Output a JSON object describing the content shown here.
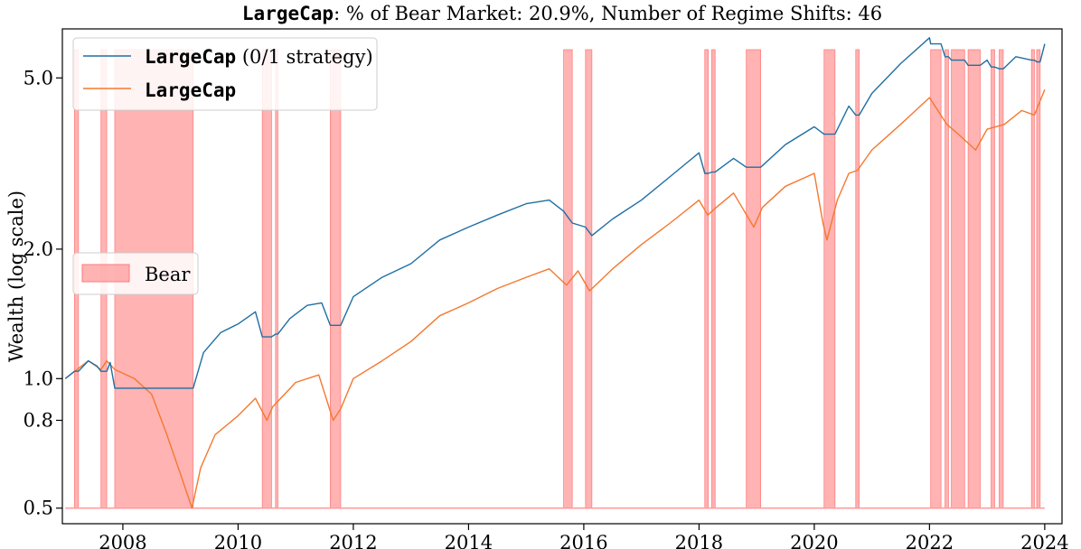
{
  "chart_data": {
    "type": "line",
    "title": {
      "code": "LargeCap",
      "rest": ": % of Bear Market: 20.9%, Number of Regime Shifts: 46"
    },
    "ylabel": "Wealth (log scale)",
    "xlabel": "",
    "y_scale": "log",
    "xlim": [
      2006.95,
      2024.3
    ],
    "ylim": [
      0.46,
      6.5
    ],
    "x_ticks": [
      {
        "value": 2008,
        "label": "2008"
      },
      {
        "value": 2010,
        "label": "2010"
      },
      {
        "value": 2012,
        "label": "2012"
      },
      {
        "value": 2014,
        "label": "2014"
      },
      {
        "value": 2016,
        "label": "2016"
      },
      {
        "value": 2018,
        "label": "2018"
      },
      {
        "value": 2020,
        "label": "2020"
      },
      {
        "value": 2022,
        "label": "2022"
      },
      {
        "value": 2024,
        "label": "2024"
      }
    ],
    "y_ticks": [
      {
        "value": 0.5,
        "label": "0.5"
      },
      {
        "value": 0.8,
        "label": "0.8"
      },
      {
        "value": 1.0,
        "label": "1.0"
      },
      {
        "value": 2.0,
        "label": "2.0"
      },
      {
        "value": 5.0,
        "label": "5.0"
      }
    ],
    "grid": false,
    "legend_upper": {
      "placement": "top-left",
      "entries": [
        {
          "code": "LargeCap",
          "suffix": " (0/1 strategy)",
          "color": "#1f6fa3"
        },
        {
          "code": "LargeCap",
          "suffix": "",
          "color": "#f4782f"
        }
      ]
    },
    "legend_lower": {
      "placement": "center-left",
      "entries": [
        {
          "label": "Bear",
          "color": "#ff9a9a"
        }
      ]
    },
    "bear_color": "#ff9a9a",
    "bear_baseline": 0.5,
    "bear_periods": [
      [
        2007.16,
        2007.23
      ],
      [
        2007.62,
        2007.72
      ],
      [
        2007.86,
        2009.22
      ],
      [
        2010.42,
        2010.58
      ],
      [
        2010.65,
        2010.69
      ],
      [
        2011.6,
        2011.78
      ],
      [
        2015.65,
        2015.8
      ],
      [
        2016.03,
        2016.14
      ],
      [
        2018.1,
        2018.16
      ],
      [
        2018.22,
        2018.28
      ],
      [
        2018.82,
        2019.07
      ],
      [
        2020.17,
        2020.36
      ],
      [
        2020.72,
        2020.78
      ],
      [
        2022.02,
        2022.2
      ],
      [
        2022.27,
        2022.33
      ],
      [
        2022.38,
        2022.61
      ],
      [
        2022.67,
        2022.88
      ],
      [
        2023.07,
        2023.13
      ],
      [
        2023.21,
        2023.28
      ],
      [
        2023.77,
        2023.82
      ],
      [
        2023.86,
        2023.92
      ]
    ],
    "series": [
      {
        "name": "LargeCap (0/1 strategy)",
        "color": "#1f6fa3",
        "x": [
          2007.0,
          2007.16,
          2007.23,
          2007.4,
          2007.55,
          2007.62,
          2007.72,
          2007.78,
          2007.86,
          2009.22,
          2009.4,
          2009.7,
          2010.0,
          2010.3,
          2010.42,
          2010.58,
          2010.65,
          2010.69,
          2010.9,
          2011.2,
          2011.45,
          2011.6,
          2011.78,
          2012.0,
          2012.5,
          2013.0,
          2013.5,
          2014.0,
          2014.5,
          2015.0,
          2015.4,
          2015.65,
          2015.8,
          2016.03,
          2016.14,
          2016.5,
          2017.0,
          2017.5,
          2018.0,
          2018.1,
          2018.16,
          2018.22,
          2018.28,
          2018.6,
          2018.82,
          2019.07,
          2019.5,
          2020.0,
          2020.17,
          2020.36,
          2020.6,
          2020.72,
          2020.78,
          2021.0,
          2021.5,
          2022.0,
          2022.02,
          2022.2,
          2022.27,
          2022.33,
          2022.38,
          2022.61,
          2022.67,
          2022.88,
          2023.0,
          2023.07,
          2023.13,
          2023.21,
          2023.28,
          2023.5,
          2023.77,
          2023.82,
          2023.86,
          2023.92,
          2024.0
        ],
        "values": [
          1.0,
          1.04,
          1.04,
          1.1,
          1.07,
          1.04,
          1.04,
          1.09,
          0.95,
          0.95,
          1.15,
          1.28,
          1.34,
          1.43,
          1.25,
          1.25,
          1.27,
          1.27,
          1.38,
          1.48,
          1.5,
          1.33,
          1.33,
          1.55,
          1.72,
          1.85,
          2.1,
          2.25,
          2.4,
          2.55,
          2.6,
          2.45,
          2.3,
          2.25,
          2.15,
          2.35,
          2.6,
          2.95,
          3.35,
          3.0,
          3.0,
          3.02,
          3.02,
          3.25,
          3.1,
          3.1,
          3.5,
          3.85,
          3.7,
          3.7,
          4.3,
          4.1,
          4.1,
          4.6,
          5.4,
          6.2,
          6.0,
          6.0,
          5.6,
          5.6,
          5.5,
          5.5,
          5.35,
          5.35,
          5.5,
          5.3,
          5.3,
          5.25,
          5.25,
          5.6,
          5.5,
          5.5,
          5.45,
          5.45,
          6.0
        ]
      },
      {
        "name": "LargeCap",
        "color": "#f4782f",
        "x": [
          2007.0,
          2007.4,
          2007.62,
          2007.72,
          2007.86,
          2008.2,
          2008.5,
          2008.75,
          2009.0,
          2009.2,
          2009.35,
          2009.6,
          2010.0,
          2010.3,
          2010.5,
          2010.6,
          2011.0,
          2011.4,
          2011.65,
          2011.78,
          2012.0,
          2012.5,
          2013.0,
          2013.5,
          2014.0,
          2014.5,
          2015.0,
          2015.4,
          2015.7,
          2015.9,
          2016.1,
          2016.5,
          2017.0,
          2017.5,
          2018.0,
          2018.15,
          2018.3,
          2018.6,
          2018.95,
          2019.1,
          2019.5,
          2020.0,
          2020.15,
          2020.22,
          2020.4,
          2020.6,
          2020.75,
          2021.0,
          2021.5,
          2022.0,
          2022.3,
          2022.5,
          2022.8,
          2023.0,
          2023.3,
          2023.6,
          2023.82,
          2024.0
        ],
        "values": [
          1.0,
          1.1,
          1.05,
          1.1,
          1.05,
          1.0,
          0.92,
          0.75,
          0.6,
          0.5,
          0.62,
          0.74,
          0.82,
          0.9,
          0.8,
          0.86,
          0.98,
          1.02,
          0.8,
          0.85,
          1.0,
          1.1,
          1.22,
          1.4,
          1.5,
          1.62,
          1.72,
          1.8,
          1.65,
          1.78,
          1.6,
          1.8,
          2.05,
          2.3,
          2.6,
          2.4,
          2.5,
          2.7,
          2.25,
          2.5,
          2.8,
          3.0,
          2.3,
          2.1,
          2.6,
          3.0,
          3.05,
          3.4,
          3.9,
          4.5,
          3.9,
          3.7,
          3.4,
          3.8,
          3.9,
          4.2,
          4.1,
          4.7
        ]
      }
    ]
  }
}
